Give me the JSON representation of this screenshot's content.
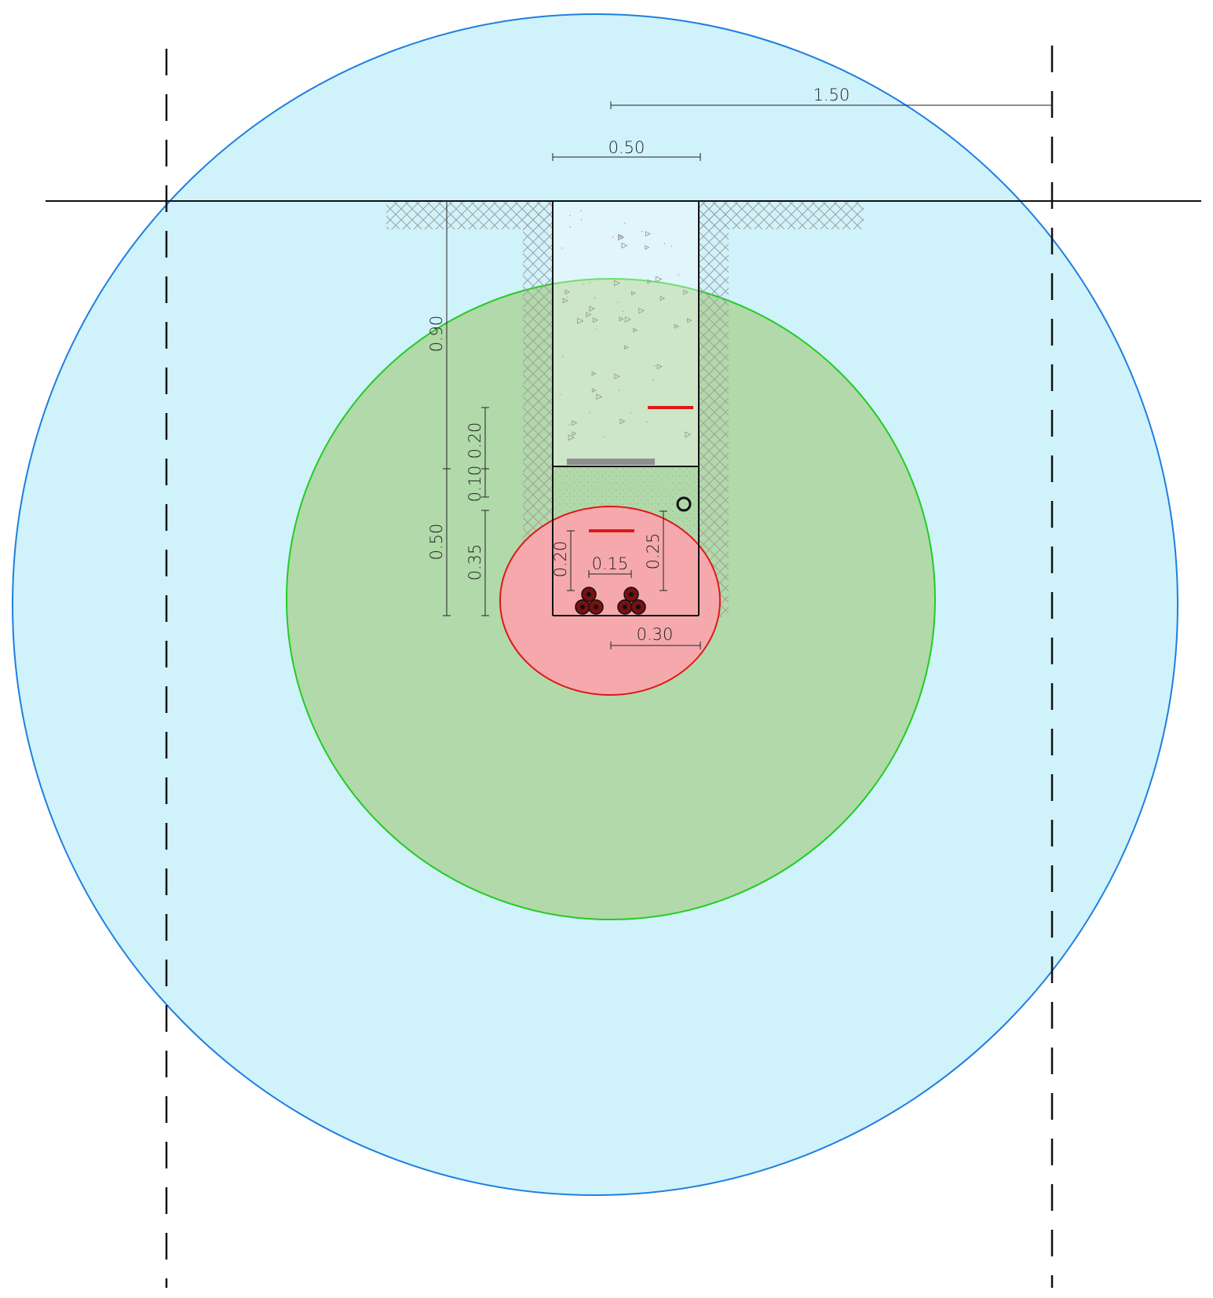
{
  "dimensions": {
    "outer_radius": "1.50",
    "trench_width": "0.50",
    "depth_total": "0.90",
    "depth_top": "0.20",
    "depth_gap": "0.10",
    "depth_lower_outer": "0.50",
    "depth_lower_inner": "0.35",
    "cable_height_left": "0.20",
    "cable_spacing": "0.15",
    "tape_height_right": "0.25",
    "cable_offset_bottom": "0.30"
  },
  "colors": {
    "outer_zone_fill": "#d0f2fb",
    "outer_zone_stroke": "#1e7fe0",
    "middle_zone_fill": "#b1d9a9",
    "middle_zone_stroke": "#22cc22",
    "inner_zone_fill": "#f5a9ad",
    "inner_zone_stroke": "#e01818",
    "warning_tape": "#e01818",
    "protection_plate": "#8f8f8f",
    "soil_hatch": "#9a9a9a"
  }
}
